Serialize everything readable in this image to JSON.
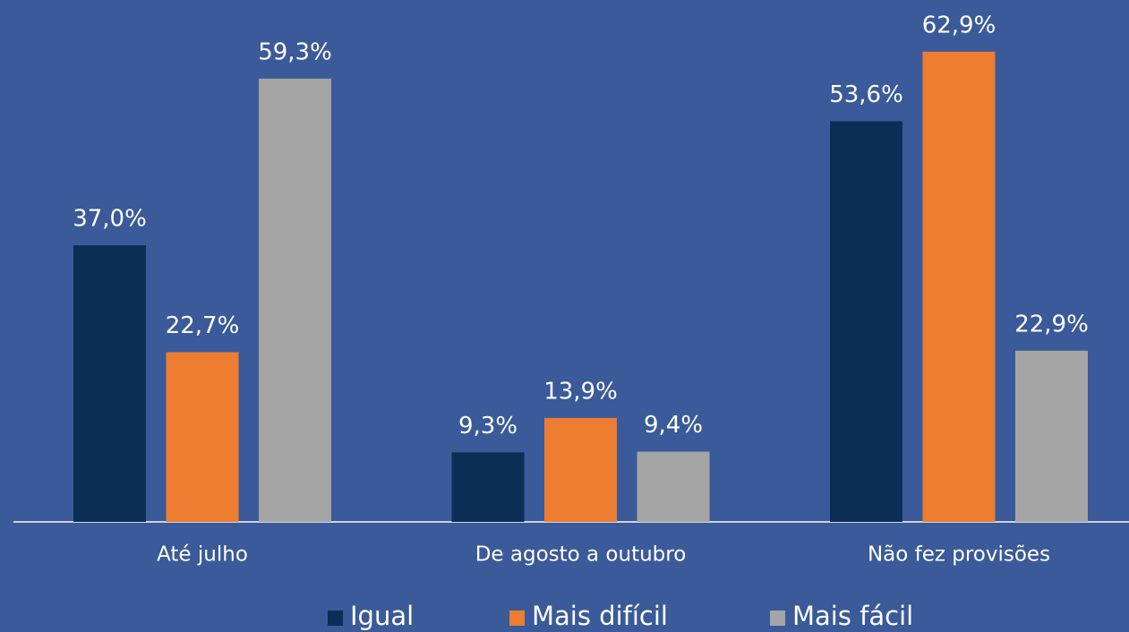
{
  "chart_data": {
    "type": "bar",
    "categories": [
      "Até julho",
      "De agosto a outubro",
      "Não fez provisões"
    ],
    "series": [
      {
        "name": "Igual",
        "color": "#0b2e55",
        "values": [
          37.0,
          9.3,
          53.6
        ],
        "value_labels": [
          "37,0%",
          "9,3%",
          "53,6%"
        ]
      },
      {
        "name": "Mais difícil",
        "color": "#ed7d31",
        "values": [
          22.7,
          13.9,
          62.9
        ],
        "value_labels": [
          "22,7%",
          "13,9%",
          "62,9%"
        ]
      },
      {
        "name": "Mais fácil",
        "color": "#a5a5a5",
        "values": [
          59.3,
          9.4,
          22.9
        ],
        "value_labels": [
          "59,3%",
          "9,4%",
          "22,9%"
        ]
      }
    ],
    "legend": "bottom"
  }
}
